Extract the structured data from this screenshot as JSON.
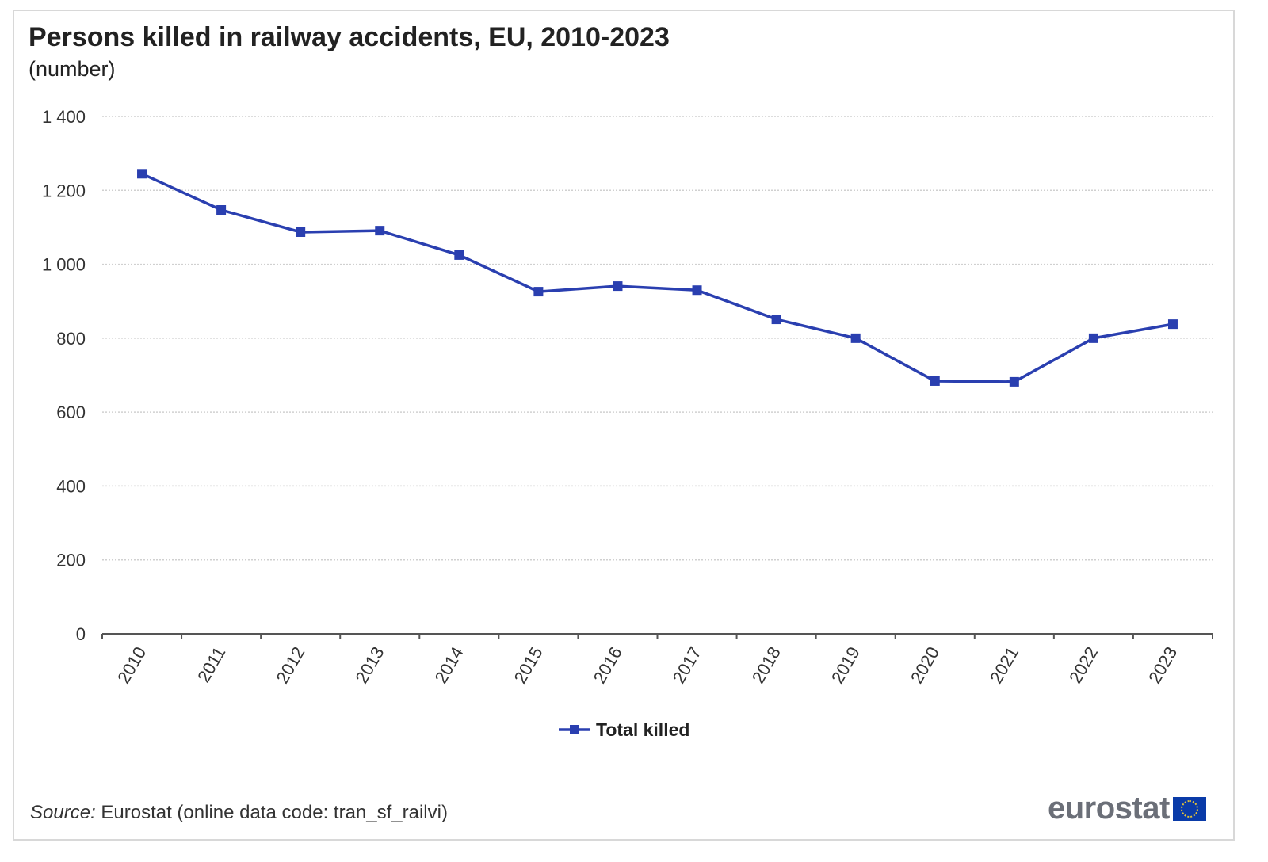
{
  "chart_data": {
    "type": "line",
    "title": "Persons killed in railway accidents, EU, 2010-2023",
    "subtitle": "(number)",
    "categories": [
      "2010",
      "2011",
      "2012",
      "2013",
      "2014",
      "2015",
      "2016",
      "2017",
      "2018",
      "2019",
      "2020",
      "2021",
      "2022",
      "2023"
    ],
    "series": [
      {
        "name": "Total killed",
        "values": [
          1245,
          1147,
          1087,
          1091,
          1025,
          926,
          941,
          930,
          851,
          800,
          684,
          682,
          800,
          838
        ],
        "color": "#2a3fb0"
      }
    ],
    "ylim": [
      0,
      1400
    ],
    "yticks": [
      0,
      200,
      400,
      600,
      800,
      1000,
      1200,
      1400
    ],
    "ytick_labels": [
      "0",
      "200",
      "400",
      "600",
      "800",
      "1 000",
      "1 200",
      "1 400"
    ],
    "grid": true,
    "legend": "bottom-center",
    "source_label": "Source:",
    "source_text": " Eurostat (online data code: tran_sf_railvi)"
  },
  "logo": {
    "text": "eurostat"
  }
}
